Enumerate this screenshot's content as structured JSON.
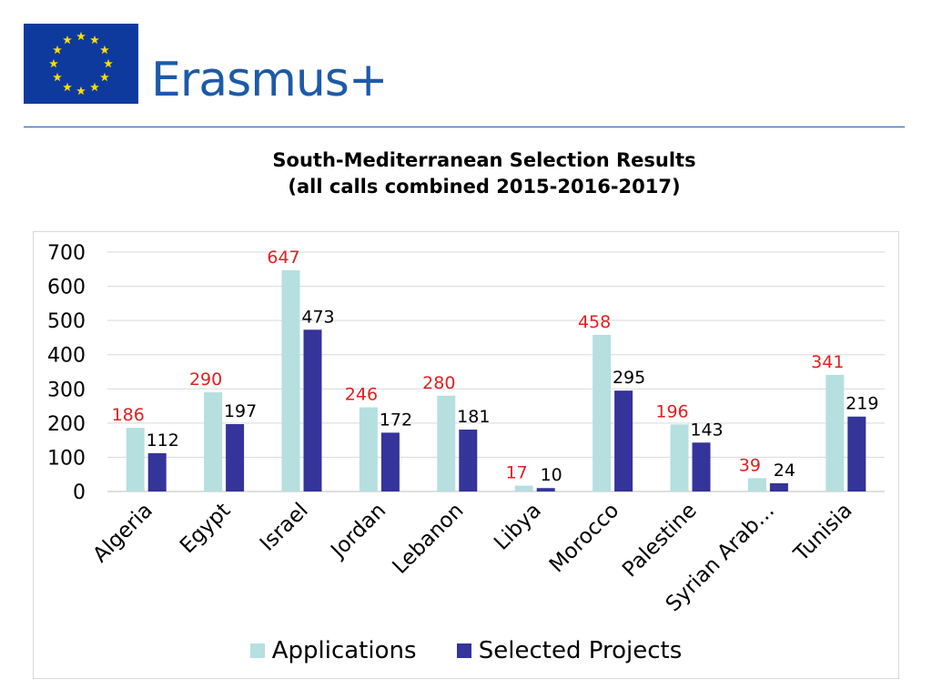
{
  "logo": {
    "brand_text": "Erasmus+",
    "flag_color": "#0e3a9e",
    "star_color": "#ffdd00",
    "text_color": "#1d5aa8"
  },
  "title": {
    "line1": "South-Mediterranean Selection Results",
    "line2": "(all calls combined 2015-2016-2017)"
  },
  "chart_data": {
    "type": "bar",
    "title": "South-Mediterranean Selection Results (all calls combined 2015-2016-2017)",
    "categories": [
      "Algeria",
      "Egypt",
      "Israel",
      "Jordan",
      "Lebanon",
      "Libya",
      "Morocco",
      "Palestine",
      "Syrian Arab…",
      "Tunisia"
    ],
    "series": [
      {
        "name": "Applications",
        "values": [
          186,
          290,
          647,
          246,
          280,
          17,
          458,
          196,
          39,
          341
        ],
        "color": "#b6dfe0",
        "label_color": "#e02020"
      },
      {
        "name": "Selected Projects",
        "values": [
          112,
          197,
          473,
          172,
          181,
          10,
          295,
          143,
          24,
          219
        ],
        "color": "#34349a",
        "label_color": "#000000"
      }
    ],
    "ylim": [
      0,
      700
    ],
    "yticks": [
      0,
      100,
      200,
      300,
      400,
      500,
      600,
      700
    ],
    "grid": true,
    "legend_position": "bottom",
    "xlabel": "",
    "ylabel": ""
  }
}
